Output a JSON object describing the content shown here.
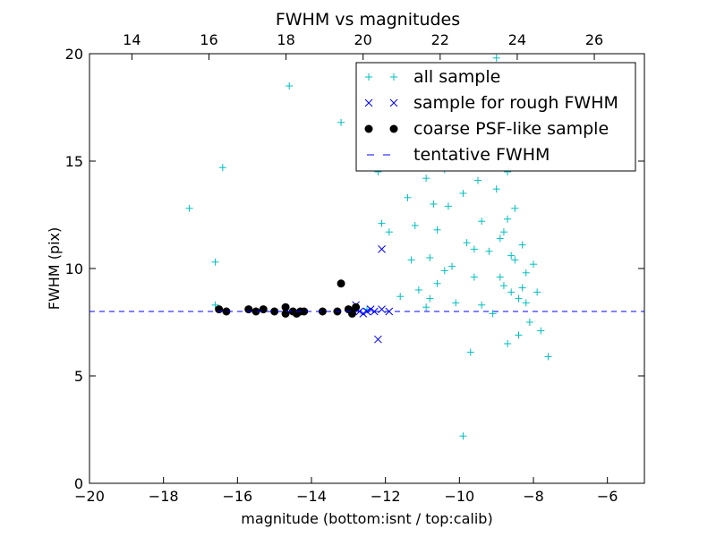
{
  "chart_data": {
    "type": "scatter",
    "title": "FWHM vs magnitudes",
    "xlabel": "magnitude (bottom:isnt / top:calib)",
    "ylabel": "FWHM (pix)",
    "xlim": [
      -20,
      -5
    ],
    "ylim": [
      0,
      20
    ],
    "x_ticks": [
      "−20",
      "−18",
      "−16",
      "−14",
      "−12",
      "−10",
      "−8",
      "−6"
    ],
    "x_tick_values": [
      -20,
      -18,
      -16,
      -14,
      -12,
      -10,
      -8,
      -6
    ],
    "top_x_ticks": [
      "14",
      "16",
      "18",
      "20",
      "22",
      "24",
      "26"
    ],
    "top_x_tick_values": [
      14,
      16,
      18,
      20,
      22,
      24,
      26
    ],
    "top_xlim": [
      12.9,
      27.3
    ],
    "y_ticks": [
      "0",
      "5",
      "10",
      "15",
      "20"
    ],
    "y_tick_values": [
      0,
      5,
      10,
      15,
      20
    ],
    "grid": false,
    "legend_position": "top-right",
    "colors": {
      "all_sample": "#00bfbf",
      "rough_sample": "#0000ff",
      "psf_sample": "#000000",
      "tentative_line": "#0000ff"
    },
    "series": [
      {
        "name": "all sample",
        "marker": "plus",
        "points": [
          [
            -17.3,
            12.8
          ],
          [
            -16.6,
            10.3
          ],
          [
            -16.4,
            14.7
          ],
          [
            -16.6,
            8.3
          ],
          [
            -14.6,
            18.5
          ],
          [
            -13.2,
            16.8
          ],
          [
            -12.5,
            8.1
          ],
          [
            -12.2,
            14.5
          ],
          [
            -12.1,
            12.1
          ],
          [
            -11.9,
            11.7
          ],
          [
            -11.6,
            8.7
          ],
          [
            -11.4,
            13.3
          ],
          [
            -11.3,
            10.4
          ],
          [
            -11.2,
            12.0
          ],
          [
            -11.1,
            9.0
          ],
          [
            -10.9,
            14.2
          ],
          [
            -10.9,
            8.2
          ],
          [
            -10.8,
            10.5
          ],
          [
            -10.7,
            13.0
          ],
          [
            -10.6,
            11.8
          ],
          [
            -10.6,
            9.3
          ],
          [
            -10.4,
            14.6
          ],
          [
            -10.3,
            12.9
          ],
          [
            -10.2,
            10.1
          ],
          [
            -10.1,
            8.4
          ],
          [
            -10.1,
            15.2
          ],
          [
            -9.9,
            13.5
          ],
          [
            -9.8,
            11.2
          ],
          [
            -9.7,
            6.1
          ],
          [
            -9.6,
            9.6
          ],
          [
            -9.5,
            14.1
          ],
          [
            -9.4,
            12.2
          ],
          [
            -9.3,
            19.1
          ],
          [
            -9.2,
            10.8
          ],
          [
            -9.1,
            7.9
          ],
          [
            -9.0,
            13.7
          ],
          [
            -8.9,
            11.4
          ],
          [
            -8.8,
            9.2
          ],
          [
            -8.7,
            14.5
          ],
          [
            -8.6,
            10.6
          ],
          [
            -8.5,
            12.8
          ],
          [
            -8.4,
            8.6
          ],
          [
            -8.4,
            6.9
          ],
          [
            -8.3,
            11.1
          ],
          [
            -8.2,
            9.8
          ],
          [
            -8.1,
            7.5
          ],
          [
            -8.0,
            10.2
          ],
          [
            -7.9,
            8.9
          ],
          [
            -7.8,
            7.1
          ],
          [
            -7.6,
            5.9
          ],
          [
            -9.9,
            2.2
          ],
          [
            -9.0,
            19.8
          ],
          [
            -9.4,
            8.3
          ],
          [
            -8.7,
            12.3
          ],
          [
            -9.2,
            15.6
          ],
          [
            -8.9,
            9.6
          ],
          [
            -8.6,
            8.9
          ],
          [
            -8.5,
            10.4
          ],
          [
            -8.3,
            9.1
          ],
          [
            -8.8,
            11.7
          ],
          [
            -9.6,
            10.9
          ],
          [
            -10.4,
            9.9
          ],
          [
            -10.8,
            8.6
          ],
          [
            -8.2,
            8.4
          ],
          [
            -8.7,
            6.5
          ]
        ]
      },
      {
        "name": "sample for rough FWHM",
        "marker": "x",
        "points": [
          [
            -12.1,
            10.9
          ],
          [
            -12.2,
            6.7
          ],
          [
            -12.8,
            8.3
          ],
          [
            -12.6,
            7.9
          ],
          [
            -12.5,
            8.0
          ],
          [
            -12.4,
            8.1
          ],
          [
            -12.3,
            8.0
          ],
          [
            -12.1,
            8.1
          ],
          [
            -11.9,
            8.0
          ],
          [
            -12.7,
            8.0
          ],
          [
            -12.9,
            8.1
          ]
        ]
      },
      {
        "name": "coarse PSF-like sample",
        "marker": "dot",
        "points": [
          [
            -16.5,
            8.1
          ],
          [
            -16.3,
            8.0
          ],
          [
            -15.7,
            8.1
          ],
          [
            -15.5,
            8.0
          ],
          [
            -15.3,
            8.1
          ],
          [
            -15.0,
            8.0
          ],
          [
            -14.7,
            8.2
          ],
          [
            -14.7,
            7.9
          ],
          [
            -14.5,
            8.0
          ],
          [
            -14.4,
            7.9
          ],
          [
            -14.3,
            8.0
          ],
          [
            -14.2,
            8.0
          ],
          [
            -13.7,
            8.0
          ],
          [
            -13.3,
            8.0
          ],
          [
            -13.2,
            9.3
          ],
          [
            -13.0,
            8.1
          ],
          [
            -12.9,
            7.9
          ],
          [
            -12.8,
            8.2
          ]
        ]
      },
      {
        "name": "tentative FWHM",
        "marker": "dashed-line",
        "y": 8.0
      }
    ]
  }
}
